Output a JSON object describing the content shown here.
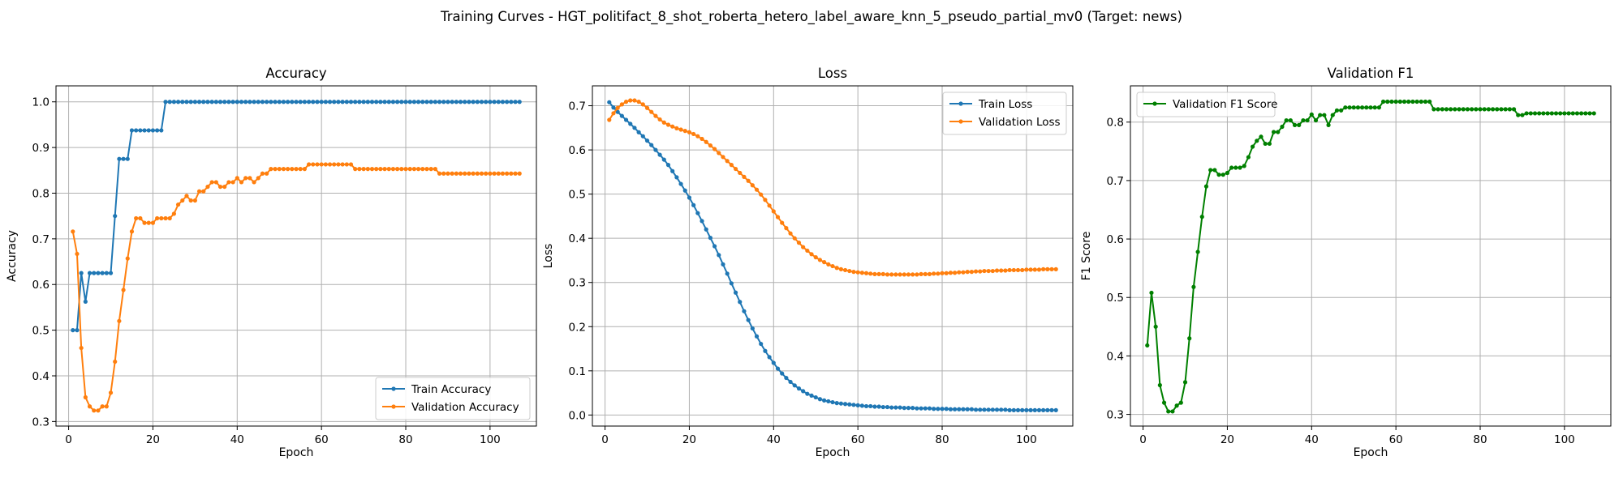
{
  "figure": {
    "suptitle": "Training Curves - HGT_politifact_8_shot_roberta_hetero_label_aware_knn_5_pseudo_partial_mv0 (Target: news)"
  },
  "chart_data": [
    {
      "type": "line",
      "title": "Accuracy",
      "xlabel": "Epoch",
      "ylabel": "Accuracy",
      "xlim": [
        -3,
        111
      ],
      "ylim": [
        0.29,
        1.035
      ],
      "xticks": [
        0,
        20,
        40,
        60,
        80,
        100
      ],
      "xtick_labels": [
        "0",
        "20",
        "40",
        "60",
        "80",
        "100"
      ],
      "yticks": [
        0.3,
        0.4,
        0.5,
        0.6,
        0.7,
        0.8,
        0.9,
        1.0
      ],
      "ytick_labels": [
        "0.3",
        "0.4",
        "0.5",
        "0.6",
        "0.7",
        "0.8",
        "0.9",
        "1.0"
      ],
      "grid": true,
      "legend_position": "lower-right",
      "x": [
        1,
        2,
        3,
        4,
        5,
        6,
        7,
        8,
        9,
        10,
        11,
        12,
        13,
        14,
        15,
        16,
        17,
        18,
        19,
        20,
        21,
        22,
        23,
        24,
        25,
        26,
        27,
        28,
        29,
        30,
        31,
        32,
        33,
        34,
        35,
        36,
        37,
        38,
        39,
        40,
        41,
        42,
        43,
        44,
        45,
        46,
        47,
        48,
        49,
        50,
        51,
        52,
        53,
        54,
        55,
        56,
        57,
        58,
        59,
        60,
        61,
        62,
        63,
        64,
        65,
        66,
        67,
        68,
        69,
        70,
        71,
        72,
        73,
        74,
        75,
        76,
        77,
        78,
        79,
        80,
        81,
        82,
        83,
        84,
        85,
        86,
        87,
        88,
        89,
        90,
        91,
        92,
        93,
        94,
        95,
        96,
        97,
        98,
        99,
        100,
        101,
        102,
        103,
        104,
        105,
        106,
        107
      ],
      "series": [
        {
          "name": "Train Accuracy",
          "color": "#1f77b4",
          "values": [
            0.5,
            0.5,
            0.625,
            0.5625,
            0.625,
            0.625,
            0.625,
            0.625,
            0.625,
            0.625,
            0.75,
            0.875,
            0.875,
            0.875,
            0.9375,
            0.9375,
            0.9375,
            0.9375,
            0.9375,
            0.9375,
            0.9375,
            0.9375,
            1.0,
            1.0,
            1.0,
            1.0,
            1.0,
            1.0,
            1.0,
            1.0,
            1.0,
            1.0,
            1.0,
            1.0,
            1.0,
            1.0,
            1.0,
            1.0,
            1.0,
            1.0,
            1.0,
            1.0,
            1.0,
            1.0,
            1.0,
            1.0,
            1.0,
            1.0,
            1.0,
            1.0,
            1.0,
            1.0,
            1.0,
            1.0,
            1.0,
            1.0,
            1.0,
            1.0,
            1.0,
            1.0,
            1.0,
            1.0,
            1.0,
            1.0,
            1.0,
            1.0,
            1.0,
            1.0,
            1.0,
            1.0,
            1.0,
            1.0,
            1.0,
            1.0,
            1.0,
            1.0,
            1.0,
            1.0,
            1.0,
            1.0,
            1.0,
            1.0,
            1.0,
            1.0,
            1.0,
            1.0,
            1.0,
            1.0,
            1.0,
            1.0,
            1.0,
            1.0,
            1.0,
            1.0,
            1.0,
            1.0,
            1.0,
            1.0,
            1.0,
            1.0,
            1.0,
            1.0,
            1.0,
            1.0,
            1.0,
            1.0,
            1.0
          ]
        },
        {
          "name": "Validation Accuracy",
          "color": "#ff7f0e",
          "values": [
            0.716,
            0.667,
            0.461,
            0.353,
            0.333,
            0.324,
            0.324,
            0.333,
            0.333,
            0.363,
            0.431,
            0.52,
            0.588,
            0.657,
            0.716,
            0.745,
            0.745,
            0.735,
            0.735,
            0.735,
            0.745,
            0.745,
            0.745,
            0.745,
            0.755,
            0.775,
            0.784,
            0.794,
            0.784,
            0.784,
            0.804,
            0.804,
            0.814,
            0.824,
            0.824,
            0.814,
            0.814,
            0.824,
            0.824,
            0.833,
            0.824,
            0.833,
            0.833,
            0.824,
            0.833,
            0.843,
            0.843,
            0.853,
            0.853,
            0.853,
            0.853,
            0.853,
            0.853,
            0.853,
            0.853,
            0.853,
            0.863,
            0.863,
            0.863,
            0.863,
            0.863,
            0.863,
            0.863,
            0.863,
            0.863,
            0.863,
            0.863,
            0.853,
            0.853,
            0.853,
            0.853,
            0.853,
            0.853,
            0.853,
            0.853,
            0.853,
            0.853,
            0.853,
            0.853,
            0.853,
            0.853,
            0.853,
            0.853,
            0.853,
            0.853,
            0.853,
            0.853,
            0.843,
            0.843,
            0.843,
            0.843,
            0.843,
            0.843,
            0.843,
            0.843,
            0.843,
            0.843,
            0.843,
            0.843,
            0.843,
            0.843,
            0.843,
            0.843,
            0.843,
            0.843,
            0.843,
            0.843
          ]
        }
      ]
    },
    {
      "type": "line",
      "title": "Loss",
      "xlabel": "Epoch",
      "ylabel": "Loss",
      "xlim": [
        -3,
        111
      ],
      "ylim": [
        -0.025,
        0.745
      ],
      "xticks": [
        0,
        20,
        40,
        60,
        80,
        100
      ],
      "xtick_labels": [
        "0",
        "20",
        "40",
        "60",
        "80",
        "100"
      ],
      "yticks": [
        0.0,
        0.1,
        0.2,
        0.3,
        0.4,
        0.5,
        0.6,
        0.7
      ],
      "ytick_labels": [
        "0.0",
        "0.1",
        "0.2",
        "0.3",
        "0.4",
        "0.5",
        "0.6",
        "0.7"
      ],
      "grid": true,
      "legend_position": "upper-right",
      "x": [
        1,
        2,
        3,
        4,
        5,
        6,
        7,
        8,
        9,
        10,
        11,
        12,
        13,
        14,
        15,
        16,
        17,
        18,
        19,
        20,
        21,
        22,
        23,
        24,
        25,
        26,
        27,
        28,
        29,
        30,
        31,
        32,
        33,
        34,
        35,
        36,
        37,
        38,
        39,
        40,
        41,
        42,
        43,
        44,
        45,
        46,
        47,
        48,
        49,
        50,
        51,
        52,
        53,
        54,
        55,
        56,
        57,
        58,
        59,
        60,
        61,
        62,
        63,
        64,
        65,
        66,
        67,
        68,
        69,
        70,
        71,
        72,
        73,
        74,
        75,
        76,
        77,
        78,
        79,
        80,
        81,
        82,
        83,
        84,
        85,
        86,
        87,
        88,
        89,
        90,
        91,
        92,
        93,
        94,
        95,
        96,
        97,
        98,
        99,
        100,
        101,
        102,
        103,
        104,
        105,
        106,
        107
      ],
      "series": [
        {
          "name": "Train Loss",
          "color": "#1f77b4",
          "values": [
            0.708,
            0.696,
            0.686,
            0.677,
            0.668,
            0.659,
            0.65,
            0.64,
            0.631,
            0.621,
            0.611,
            0.6,
            0.589,
            0.578,
            0.566,
            0.552,
            0.538,
            0.523,
            0.508,
            0.492,
            0.475,
            0.457,
            0.439,
            0.42,
            0.401,
            0.382,
            0.362,
            0.341,
            0.32,
            0.298,
            0.277,
            0.256,
            0.235,
            0.215,
            0.196,
            0.178,
            0.161,
            0.145,
            0.131,
            0.118,
            0.105,
            0.094,
            0.084,
            0.075,
            0.067,
            0.06,
            0.054,
            0.048,
            0.044,
            0.04,
            0.036,
            0.033,
            0.031,
            0.029,
            0.027,
            0.026,
            0.025,
            0.024,
            0.023,
            0.022,
            0.021,
            0.02,
            0.02,
            0.019,
            0.019,
            0.018,
            0.018,
            0.017,
            0.017,
            0.017,
            0.016,
            0.016,
            0.016,
            0.015,
            0.015,
            0.015,
            0.015,
            0.014,
            0.014,
            0.014,
            0.014,
            0.013,
            0.013,
            0.013,
            0.013,
            0.013,
            0.013,
            0.012,
            0.012,
            0.012,
            0.012,
            0.012,
            0.012,
            0.012,
            0.012,
            0.011,
            0.011,
            0.011,
            0.011,
            0.011,
            0.011,
            0.011,
            0.011,
            0.011,
            0.011,
            0.011,
            0.011
          ]
        },
        {
          "name": "Validation Loss",
          "color": "#ff7f0e",
          "values": [
            0.668,
            0.683,
            0.695,
            0.703,
            0.709,
            0.712,
            0.712,
            0.709,
            0.703,
            0.695,
            0.686,
            0.677,
            0.669,
            0.662,
            0.657,
            0.653,
            0.649,
            0.646,
            0.643,
            0.64,
            0.636,
            0.631,
            0.625,
            0.618,
            0.61,
            0.602,
            0.593,
            0.584,
            0.575,
            0.566,
            0.557,
            0.548,
            0.539,
            0.53,
            0.52,
            0.51,
            0.499,
            0.487,
            0.474,
            0.461,
            0.448,
            0.435,
            0.423,
            0.411,
            0.4,
            0.39,
            0.38,
            0.372,
            0.364,
            0.357,
            0.351,
            0.346,
            0.341,
            0.337,
            0.333,
            0.33,
            0.328,
            0.326,
            0.324,
            0.323,
            0.322,
            0.321,
            0.32,
            0.319,
            0.319,
            0.319,
            0.318,
            0.318,
            0.318,
            0.318,
            0.318,
            0.318,
            0.318,
            0.318,
            0.319,
            0.319,
            0.319,
            0.32,
            0.32,
            0.321,
            0.321,
            0.322,
            0.322,
            0.323,
            0.323,
            0.324,
            0.324,
            0.325,
            0.325,
            0.326,
            0.326,
            0.326,
            0.327,
            0.327,
            0.327,
            0.328,
            0.328,
            0.328,
            0.328,
            0.329,
            0.329,
            0.329,
            0.329,
            0.33,
            0.33,
            0.33,
            0.33
          ]
        }
      ]
    },
    {
      "type": "line",
      "title": "Validation F1",
      "xlabel": "Epoch",
      "ylabel": "F1 Score",
      "xlim": [
        -3,
        111
      ],
      "ylim": [
        0.28,
        0.862
      ],
      "xticks": [
        0,
        20,
        40,
        60,
        80,
        100
      ],
      "xtick_labels": [
        "0",
        "20",
        "40",
        "60",
        "80",
        "100"
      ],
      "yticks": [
        0.3,
        0.4,
        0.5,
        0.6,
        0.7,
        0.8
      ],
      "ytick_labels": [
        "0.3",
        "0.4",
        "0.5",
        "0.6",
        "0.7",
        "0.8"
      ],
      "grid": true,
      "legend_position": "upper-left",
      "x": [
        1,
        2,
        3,
        4,
        5,
        6,
        7,
        8,
        9,
        10,
        11,
        12,
        13,
        14,
        15,
        16,
        17,
        18,
        19,
        20,
        21,
        22,
        23,
        24,
        25,
        26,
        27,
        28,
        29,
        30,
        31,
        32,
        33,
        34,
        35,
        36,
        37,
        38,
        39,
        40,
        41,
        42,
        43,
        44,
        45,
        46,
        47,
        48,
        49,
        50,
        51,
        52,
        53,
        54,
        55,
        56,
        57,
        58,
        59,
        60,
        61,
        62,
        63,
        64,
        65,
        66,
        67,
        68,
        69,
        70,
        71,
        72,
        73,
        74,
        75,
        76,
        77,
        78,
        79,
        80,
        81,
        82,
        83,
        84,
        85,
        86,
        87,
        88,
        89,
        90,
        91,
        92,
        93,
        94,
        95,
        96,
        97,
        98,
        99,
        100,
        101,
        102,
        103,
        104,
        105,
        106,
        107
      ],
      "series": [
        {
          "name": "Validation F1 Score",
          "color": "#008000",
          "values": [
            0.418,
            0.508,
            0.45,
            0.35,
            0.32,
            0.305,
            0.305,
            0.315,
            0.32,
            0.355,
            0.43,
            0.518,
            0.578,
            0.638,
            0.69,
            0.718,
            0.718,
            0.71,
            0.71,
            0.713,
            0.722,
            0.722,
            0.722,
            0.725,
            0.74,
            0.758,
            0.768,
            0.775,
            0.763,
            0.763,
            0.783,
            0.783,
            0.792,
            0.803,
            0.803,
            0.795,
            0.795,
            0.803,
            0.803,
            0.813,
            0.803,
            0.812,
            0.812,
            0.795,
            0.812,
            0.82,
            0.82,
            0.825,
            0.825,
            0.825,
            0.825,
            0.825,
            0.825,
            0.825,
            0.825,
            0.825,
            0.835,
            0.835,
            0.835,
            0.835,
            0.835,
            0.835,
            0.835,
            0.835,
            0.835,
            0.835,
            0.835,
            0.835,
            0.822,
            0.822,
            0.822,
            0.822,
            0.822,
            0.822,
            0.822,
            0.822,
            0.822,
            0.822,
            0.822,
            0.822,
            0.822,
            0.822,
            0.822,
            0.822,
            0.822,
            0.822,
            0.822,
            0.822,
            0.812,
            0.812,
            0.815,
            0.815,
            0.815,
            0.815,
            0.815,
            0.815,
            0.815,
            0.815,
            0.815,
            0.815,
            0.815,
            0.815,
            0.815,
            0.815,
            0.815,
            0.815,
            0.815
          ]
        }
      ]
    }
  ]
}
